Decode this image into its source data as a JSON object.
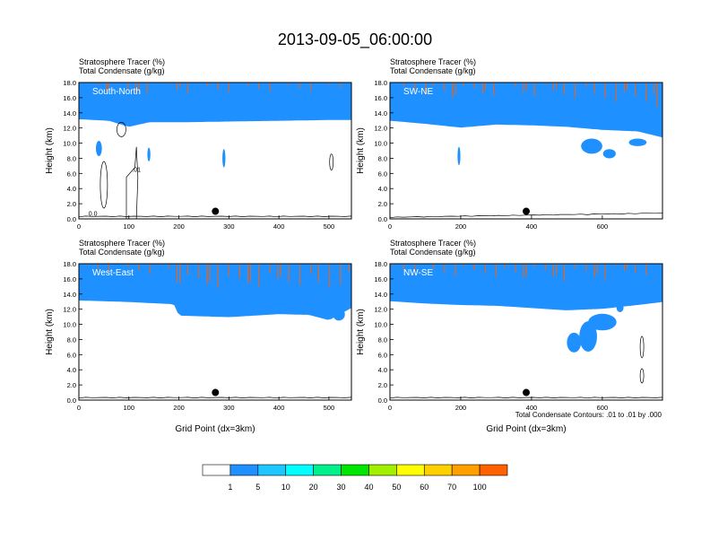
{
  "title": "2013-09-05_06:00:00",
  "chart_data": [
    {
      "type": "heatmap",
      "panel_label": "South-North",
      "subtitle_line1": "Stratosphere Tracer   (%)",
      "subtitle_line2": "Total Condensate   (g/kg)",
      "xlabel": "",
      "ylabel": "Height (km)",
      "xlim": [
        0,
        545
      ],
      "ylim": [
        0,
        18
      ],
      "xticks": [
        "0",
        "100",
        "200",
        "300",
        "400",
        "500"
      ],
      "yticks": [
        "0.0",
        "2.0",
        "4.0",
        "6.0",
        "8.0",
        "10.0",
        "12.0",
        "14.0",
        "16.0",
        "18.0"
      ],
      "tropopause_km": [
        [
          0,
          13.6
        ],
        [
          60,
          13.4
        ],
        [
          100,
          12.6
        ],
        [
          140,
          13.2
        ],
        [
          200,
          13.2
        ],
        [
          300,
          13.3
        ],
        [
          400,
          13.4
        ],
        [
          500,
          13.5
        ],
        [
          545,
          13.5
        ]
      ],
      "marker_x": 273,
      "marker_y_km": 1.0,
      "contour_labels": [
        ".01",
        "0.0"
      ]
    },
    {
      "type": "heatmap",
      "panel_label": "SW-NE",
      "subtitle_line1": "Stratosphere Tracer   (%)",
      "subtitle_line2": "Total Condensate   (g/kg)",
      "xlabel": "",
      "ylabel": "Height (km)",
      "xlim": [
        0,
        770
      ],
      "ylim": [
        0,
        18
      ],
      "xticks": [
        "0",
        "200",
        "400",
        "600"
      ],
      "yticks": [
        "0.0",
        "2.0",
        "4.0",
        "6.0",
        "8.0",
        "10.0",
        "12.0",
        "14.0",
        "16.0",
        "18.0"
      ],
      "tropopause_km": [
        [
          0,
          13.4
        ],
        [
          100,
          13.0
        ],
        [
          200,
          12.5
        ],
        [
          300,
          12.9
        ],
        [
          400,
          12.8
        ],
        [
          500,
          12.6
        ],
        [
          600,
          12.2
        ],
        [
          700,
          12.0
        ],
        [
          770,
          11.2
        ]
      ],
      "marker_x": 385,
      "marker_y_km": 1.0,
      "contour_labels": []
    },
    {
      "type": "heatmap",
      "panel_label": "West-East",
      "subtitle_line1": "Stratosphere Tracer   (%)",
      "subtitle_line2": "Total Condensate   (g/kg)",
      "xlabel": "Grid Point (dx=3km)",
      "ylabel": "Height (km)",
      "xlim": [
        0,
        545
      ],
      "ylim": [
        0,
        18
      ],
      "xticks": [
        "0",
        "100",
        "200",
        "300",
        "400",
        "500"
      ],
      "yticks": [
        "0.0",
        "2.0",
        "4.0",
        "6.0",
        "8.0",
        "10.0",
        "12.0",
        "14.0",
        "16.0",
        "18.0"
      ],
      "tropopause_km": [
        [
          0,
          13.6
        ],
        [
          100,
          13.4
        ],
        [
          190,
          13.1
        ],
        [
          200,
          11.6
        ],
        [
          300,
          11.4
        ],
        [
          400,
          11.8
        ],
        [
          460,
          11.7
        ],
        [
          500,
          11.0
        ],
        [
          545,
          12.6
        ]
      ],
      "marker_x": 273,
      "marker_y_km": 1.0,
      "contour_labels": []
    },
    {
      "type": "heatmap",
      "panel_label": "NW-SE",
      "subtitle_line1": "Stratosphere Tracer   (%)",
      "subtitle_line2": "Total Condensate   (g/kg)",
      "xlabel": "Grid Point (dx=3km)",
      "ylabel": "Height (km)",
      "xlim": [
        0,
        770
      ],
      "ylim": [
        0,
        18
      ],
      "xticks": [
        "0",
        "200",
        "400",
        "600"
      ],
      "yticks": [
        "0.0",
        "2.0",
        "4.0",
        "6.0",
        "8.0",
        "10.0",
        "12.0",
        "14.0",
        "16.0",
        "18.0"
      ],
      "tropopause_km": [
        [
          0,
          13.5
        ],
        [
          100,
          13.2
        ],
        [
          200,
          13.0
        ],
        [
          300,
          12.9
        ],
        [
          400,
          12.6
        ],
        [
          500,
          12.3
        ],
        [
          600,
          12.5
        ],
        [
          700,
          13.0
        ],
        [
          770,
          13.4
        ]
      ],
      "marker_x": 385,
      "marker_y_km": 1.0,
      "contour_labels": []
    }
  ],
  "contour_note": "Total Condensate Contours: .01 to .01 by .000",
  "colorbar": {
    "levels": [
      "1",
      "5",
      "10",
      "20",
      "30",
      "40",
      "50",
      "60",
      "70",
      "100"
    ],
    "colors": [
      "#ffffff",
      "#1e90ff",
      "#1ec8ff",
      "#00ffff",
      "#00f08c",
      "#00e600",
      "#a0f000",
      "#ffff00",
      "#ffd000",
      "#ffa000",
      "#ff6000",
      "#ff0000"
    ]
  }
}
